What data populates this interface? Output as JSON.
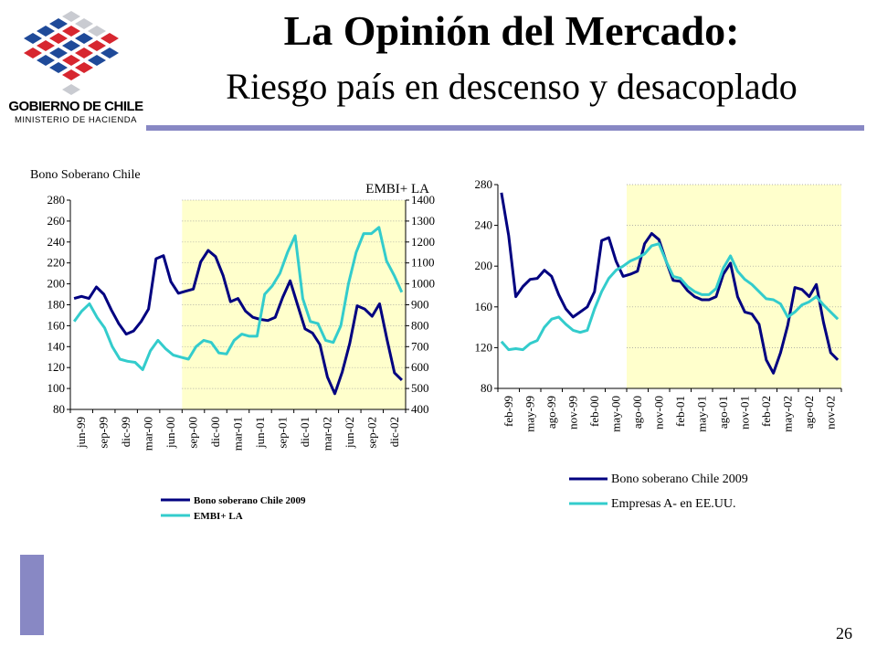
{
  "header": {
    "title": "La Opinión del Mercado:",
    "subtitle": "Riesgo país en descenso y desacoplado"
  },
  "logo": {
    "line1": "GOBIERNO DE CHILE",
    "line2": "MINISTERIO DE HACIENDA",
    "icon": "star-cube-logo-icon",
    "colors": {
      "red": "#d7262f",
      "blue": "#1f4a99",
      "gray": "#c9cbd1"
    }
  },
  "footer": {
    "page_number": "26"
  },
  "colors": {
    "accent": "#8888c4",
    "dark_series": "#000080",
    "light_series": "#33cccc",
    "shade": "#ffffcc"
  },
  "chart_data": [
    {
      "type": "line",
      "title": "",
      "ylabel_left": "Bono Soberano Chile",
      "ylabel_right": "EMBI+ LA",
      "ylim_left": [
        80,
        280
      ],
      "yticks_left": [
        80,
        100,
        120,
        140,
        160,
        180,
        200,
        220,
        240,
        260,
        280
      ],
      "ylim_right": [
        400,
        1400
      ],
      "yticks_right": [
        400,
        500,
        600,
        700,
        800,
        900,
        1000,
        1100,
        1200,
        1300,
        1400
      ],
      "x_tick_labels": [
        "jun-99",
        "sep-99",
        "dic-99",
        "mar-00",
        "jun-00",
        "sep-00",
        "dic-00",
        "mar-01",
        "jun-01",
        "sep-01",
        "dic-01",
        "mar-02",
        "jun-02",
        "sep-02",
        "dic-02"
      ],
      "shaded_from_tick": 5,
      "legend_position": "bottom",
      "series": [
        {
          "name": "Bono soberano Chile 2009",
          "axis": "left",
          "values": [
            186,
            188,
            186,
            197,
            190,
            175,
            162,
            152,
            155,
            164,
            176,
            224,
            227,
            202,
            191,
            193,
            195,
            221,
            232,
            226,
            208,
            183,
            186,
            174,
            168,
            166,
            165,
            168,
            187,
            203,
            180,
            157,
            153,
            142,
            111,
            95,
            116,
            143,
            179,
            176,
            169,
            181,
            147,
            115,
            108
          ]
        },
        {
          "name": "EMBI+ LA",
          "axis": "right",
          "values": [
            820,
            870,
            905,
            840,
            790,
            700,
            640,
            630,
            625,
            590,
            680,
            730,
            690,
            660,
            650,
            640,
            700,
            730,
            720,
            670,
            665,
            730,
            760,
            750,
            750,
            950,
            990,
            1050,
            1150,
            1230,
            930,
            820,
            810,
            730,
            720,
            800,
            1000,
            1150,
            1240,
            1240,
            1270,
            1110,
            1040,
            960
          ]
        }
      ]
    },
    {
      "type": "line",
      "title": "",
      "ylim": [
        80,
        280
      ],
      "yticks": [
        80,
        120,
        160,
        200,
        240,
        280
      ],
      "x_tick_labels": [
        "feb-99",
        "may-99",
        "ago-99",
        "nov-99",
        "feb-00",
        "may-00",
        "ago-00",
        "nov-00",
        "feb-01",
        "may-01",
        "ago-01",
        "nov-01",
        "feb-02",
        "may-02",
        "ago-02",
        "nov-02"
      ],
      "shaded_from_tick": 6,
      "legend_position": "bottom",
      "series": [
        {
          "name": "Bono soberano Chile 2009",
          "values": [
            272,
            230,
            170,
            180,
            187,
            188,
            196,
            190,
            172,
            158,
            150,
            155,
            160,
            175,
            225,
            228,
            205,
            190,
            192,
            195,
            222,
            232,
            226,
            205,
            186,
            185,
            176,
            170,
            167,
            167,
            170,
            192,
            203,
            170,
            155,
            153,
            143,
            108,
            95,
            115,
            142,
            179,
            177,
            170,
            182,
            145,
            115,
            108
          ]
        },
        {
          "name": "Empresas A- en EE.UU.",
          "values": [
            126,
            118,
            119,
            118,
            124,
            127,
            140,
            148,
            150,
            143,
            137,
            135,
            137,
            158,
            175,
            188,
            196,
            200,
            205,
            208,
            212,
            220,
            222,
            205,
            190,
            188,
            180,
            175,
            172,
            172,
            178,
            198,
            210,
            195,
            187,
            182,
            175,
            168,
            167,
            163,
            150,
            155,
            162,
            165,
            170,
            162,
            155,
            148
          ]
        }
      ]
    }
  ]
}
